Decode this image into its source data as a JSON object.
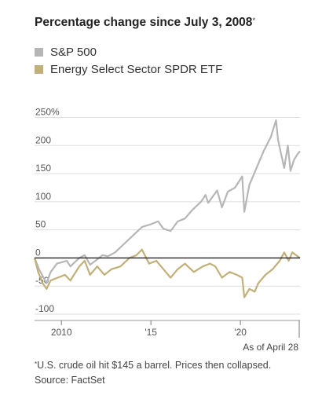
{
  "title": "Percentage change since July 3, 2008",
  "title_note_mark": "*",
  "colors": {
    "sp500": "#b6b6b6",
    "energy": "#c2b07a",
    "grid": "#dddddd",
    "zero": "#222222"
  },
  "chart_data": {
    "type": "line",
    "title": "Percentage change since July 3, 2008",
    "ylim": [
      -100,
      280
    ],
    "xlim": [
      2008.5,
      2023.33
    ],
    "y_ticks": [
      {
        "value": 250,
        "label": "250%"
      },
      {
        "value": 200,
        "label": "200"
      },
      {
        "value": 150,
        "label": "150"
      },
      {
        "value": 100,
        "label": "100"
      },
      {
        "value": 50,
        "label": "50"
      },
      {
        "value": 0,
        "label": "0"
      },
      {
        "value": -50,
        "label": "-50"
      },
      {
        "value": -100,
        "label": "-100"
      }
    ],
    "x_ticks": [
      {
        "value": 2010,
        "label": "2010"
      },
      {
        "value": 2015,
        "label": "'15"
      },
      {
        "value": 2020,
        "label": "'20"
      }
    ],
    "x_end_label": "As of April 28",
    "grid": true,
    "legend_position": "top-left",
    "series": [
      {
        "name": "S&P 500",
        "color": "#b6b6b6",
        "points": [
          [
            2008.5,
            0
          ],
          [
            2008.75,
            -20
          ],
          [
            2009.0,
            -35
          ],
          [
            2009.17,
            -45
          ],
          [
            2009.4,
            -25
          ],
          [
            2009.75,
            -10
          ],
          [
            2010.0,
            -8
          ],
          [
            2010.3,
            -5
          ],
          [
            2010.5,
            -15
          ],
          [
            2011.0,
            0
          ],
          [
            2011.3,
            5
          ],
          [
            2011.6,
            -12
          ],
          [
            2011.9,
            -5
          ],
          [
            2012.3,
            5
          ],
          [
            2012.6,
            3
          ],
          [
            2013.0,
            10
          ],
          [
            2013.5,
            25
          ],
          [
            2014.0,
            40
          ],
          [
            2014.5,
            55
          ],
          [
            2015.0,
            60
          ],
          [
            2015.4,
            65
          ],
          [
            2015.7,
            52
          ],
          [
            2016.1,
            48
          ],
          [
            2016.5,
            65
          ],
          [
            2016.9,
            70
          ],
          [
            2017.3,
            85
          ],
          [
            2017.8,
            100
          ],
          [
            2018.05,
            112
          ],
          [
            2018.2,
            98
          ],
          [
            2018.7,
            120
          ],
          [
            2018.97,
            90
          ],
          [
            2019.3,
            118
          ],
          [
            2019.7,
            125
          ],
          [
            2020.1,
            145
          ],
          [
            2020.22,
            82
          ],
          [
            2020.5,
            130
          ],
          [
            2020.9,
            160
          ],
          [
            2021.3,
            190
          ],
          [
            2021.7,
            215
          ],
          [
            2021.99,
            245
          ],
          [
            2022.1,
            210
          ],
          [
            2022.45,
            160
          ],
          [
            2022.65,
            200
          ],
          [
            2022.8,
            155
          ],
          [
            2023.0,
            175
          ],
          [
            2023.2,
            185
          ],
          [
            2023.33,
            190
          ]
        ]
      },
      {
        "name": "Energy Select Sector SPDR ETF",
        "color": "#c2b07a",
        "points": [
          [
            2008.5,
            0
          ],
          [
            2008.7,
            -25
          ],
          [
            2008.95,
            -45
          ],
          [
            2009.17,
            -55
          ],
          [
            2009.4,
            -40
          ],
          [
            2009.8,
            -35
          ],
          [
            2010.2,
            -30
          ],
          [
            2010.5,
            -40
          ],
          [
            2011.0,
            -15
          ],
          [
            2011.3,
            -5
          ],
          [
            2011.6,
            -30
          ],
          [
            2012.0,
            -15
          ],
          [
            2012.4,
            -30
          ],
          [
            2012.8,
            -20
          ],
          [
            2013.3,
            -15
          ],
          [
            2013.8,
            0
          ],
          [
            2014.2,
            5
          ],
          [
            2014.5,
            15
          ],
          [
            2014.9,
            -10
          ],
          [
            2015.3,
            -5
          ],
          [
            2015.7,
            -20
          ],
          [
            2016.1,
            -35
          ],
          [
            2016.5,
            -20
          ],
          [
            2016.9,
            -10
          ],
          [
            2017.4,
            -25
          ],
          [
            2017.9,
            -15
          ],
          [
            2018.3,
            -10
          ],
          [
            2018.6,
            -15
          ],
          [
            2018.97,
            -35
          ],
          [
            2019.4,
            -25
          ],
          [
            2019.8,
            -30
          ],
          [
            2020.1,
            -35
          ],
          [
            2020.22,
            -70
          ],
          [
            2020.5,
            -55
          ],
          [
            2020.8,
            -60
          ],
          [
            2021.0,
            -45
          ],
          [
            2021.4,
            -30
          ],
          [
            2021.8,
            -20
          ],
          [
            2022.2,
            -5
          ],
          [
            2022.45,
            10
          ],
          [
            2022.7,
            -5
          ],
          [
            2022.9,
            10
          ],
          [
            2023.1,
            5
          ],
          [
            2023.33,
            0
          ]
        ]
      }
    ]
  },
  "legend": [
    {
      "label": "S&P 500"
    },
    {
      "label": "Energy Select Sector SPDR ETF"
    }
  ],
  "footnote": {
    "mark": "*",
    "text": "U.S. crude oil hit $145 a barrel. Prices then collapsed.",
    "source": "Source: FactSet"
  }
}
